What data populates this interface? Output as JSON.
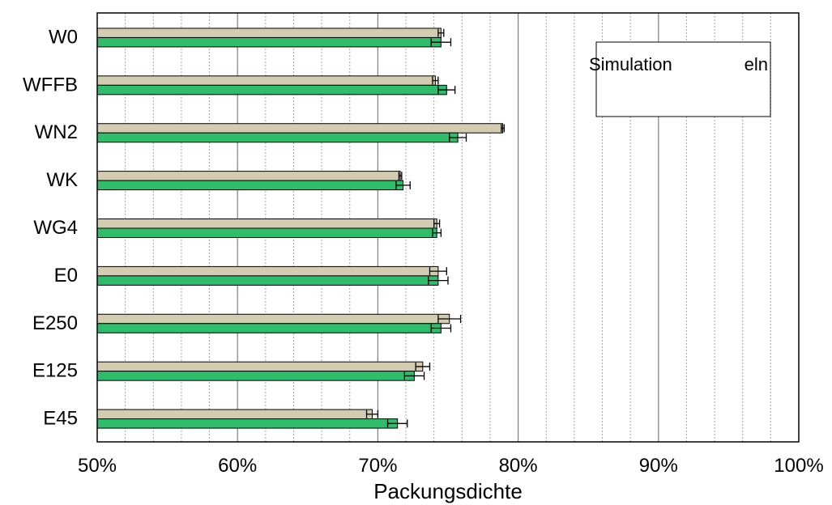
{
  "chart_data": {
    "type": "bar",
    "orientation": "horizontal",
    "categories": [
      "W0",
      "WFFB",
      "WN2",
      "WK",
      "WG4",
      "E0",
      "E250",
      "E125",
      "E45"
    ],
    "series": [
      {
        "color": "#d4ccb0",
        "values": [
          74.5,
          74.1,
          78.9,
          71.6,
          74.2,
          74.3,
          75.1,
          73.2,
          69.6
        ],
        "errors": [
          0.2,
          0.2,
          0.1,
          0.1,
          0.2,
          0.6,
          0.8,
          0.5,
          0.4
        ]
      },
      {
        "color": "#2ebd6b",
        "values": [
          74.5,
          74.9,
          75.7,
          71.8,
          74.2,
          74.3,
          74.5,
          72.6,
          71.4
        ],
        "errors": [
          0.7,
          0.6,
          0.6,
          0.5,
          0.3,
          0.7,
          0.7,
          0.7,
          0.7
        ]
      }
    ],
    "xlabel": "Packungsdichte",
    "xlim": [
      50,
      100
    ],
    "xticks": [
      50,
      60,
      70,
      80,
      90,
      100
    ],
    "xtick_labels": [
      "50%",
      "60%",
      "70%",
      "80%",
      "90%",
      "100%"
    ],
    "minor_grid_step": 2,
    "grid": true,
    "legend": {
      "placement": "top-right",
      "visible_text": [
        "Simulation",
        "eln"
      ]
    }
  }
}
